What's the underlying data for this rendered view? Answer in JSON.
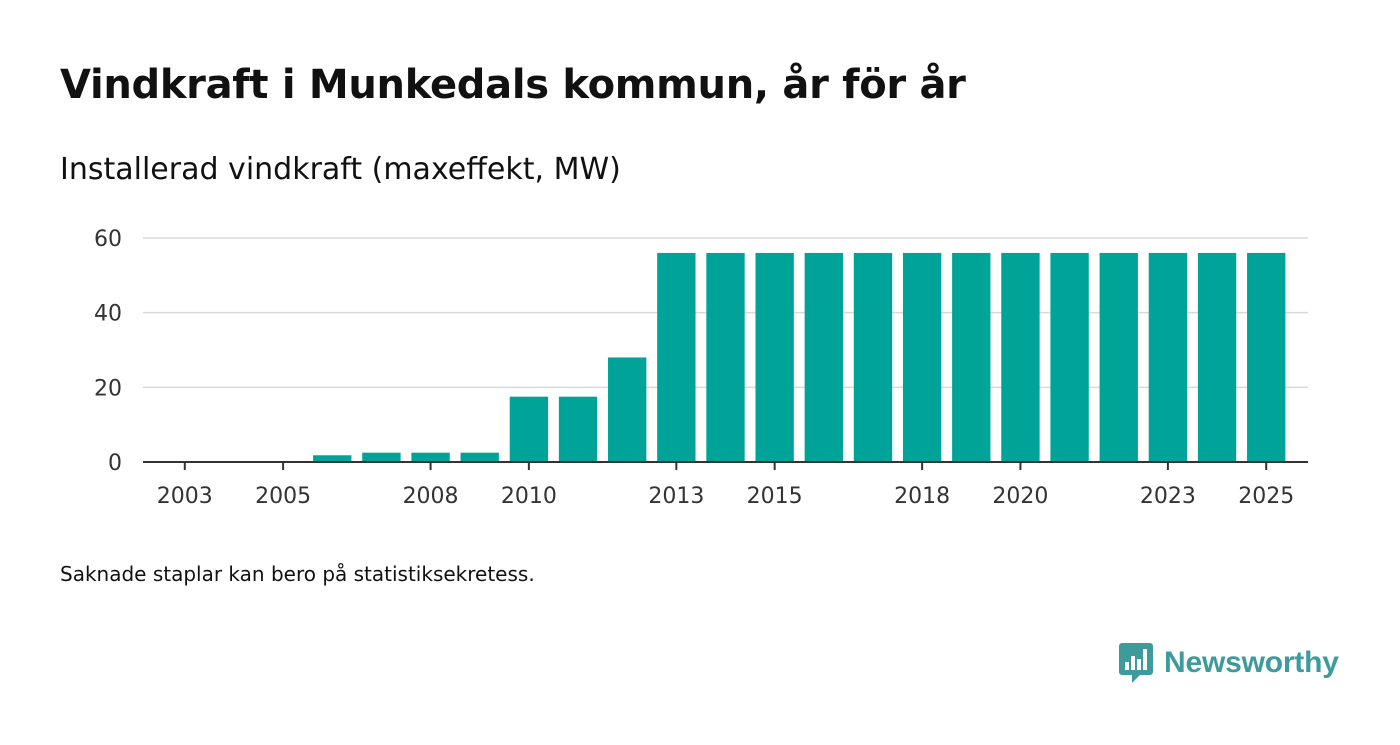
{
  "title": "Vindkraft i Munkedals kommun, år för år",
  "subtitle": "Installerad vindkraft (maxeffekt, MW)",
  "footnote": "Saknade staplar kan bero på statistiksekretess.",
  "brand": {
    "name": "Newsworthy",
    "icon": "newsworthy-logo-icon",
    "color": "#3d9b9b"
  },
  "chart_data": {
    "type": "bar",
    "title": "Vindkraft i Munkedals kommun, år för år",
    "ylabel": "Installerad vindkraft (maxeffekt, MW)",
    "xlabel": "",
    "categories": [
      2003,
      2004,
      2005,
      2006,
      2007,
      2008,
      2009,
      2010,
      2011,
      2012,
      2013,
      2014,
      2015,
      2016,
      2017,
      2018,
      2019,
      2020,
      2021,
      2022,
      2023,
      2024,
      2025
    ],
    "values": [
      0,
      0,
      0,
      1.8,
      2.5,
      2.5,
      2.5,
      17.5,
      17.5,
      28,
      56,
      56,
      56,
      56,
      56,
      56,
      56,
      56,
      56,
      56,
      56,
      56,
      56
    ],
    "xticks": [
      2003,
      2005,
      2008,
      2010,
      2013,
      2015,
      2018,
      2020,
      2023,
      2025
    ],
    "yticks": [
      0,
      20,
      40,
      60
    ],
    "ylim": [
      0,
      60
    ],
    "grid": true,
    "bar_color": "#00a398"
  }
}
